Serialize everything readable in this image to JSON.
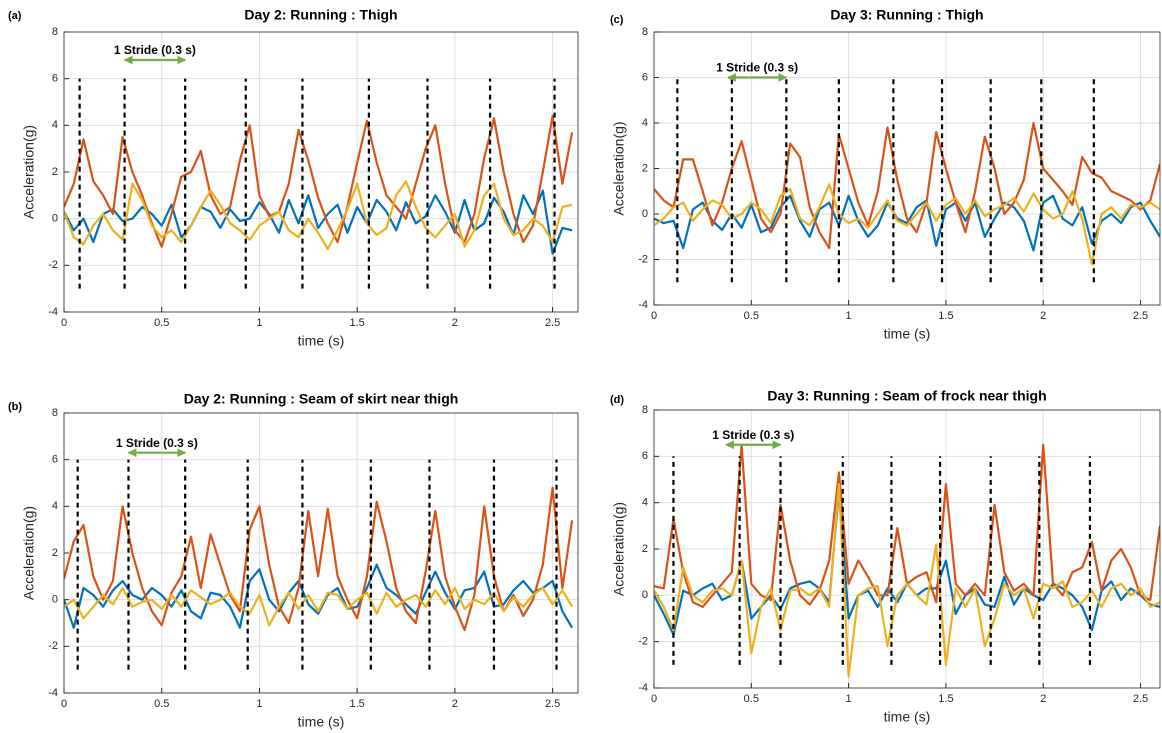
{
  "chart_data": [
    {
      "type": "line",
      "panel_label": "(a)",
      "title": "Day 2: Running : Thigh",
      "x_label": "time (s)",
      "y_label": "Acceleration(g)",
      "xlim": [
        0,
        2.63
      ],
      "ylim": [
        -4,
        8
      ],
      "xticks": [
        0,
        0.5,
        1,
        1.5,
        2,
        2.5
      ],
      "yticks": [
        -4,
        -2,
        0,
        2,
        4,
        6,
        8
      ],
      "grid": true,
      "x": [
        0,
        0.05,
        0.1,
        0.15,
        0.2,
        0.25,
        0.3,
        0.35,
        0.4,
        0.45,
        0.5,
        0.55,
        0.6,
        0.65,
        0.7,
        0.75,
        0.8,
        0.85,
        0.9,
        0.95,
        1,
        1.05,
        1.1,
        1.15,
        1.2,
        1.25,
        1.3,
        1.35,
        1.4,
        1.45,
        1.5,
        1.55,
        1.6,
        1.65,
        1.7,
        1.75,
        1.8,
        1.85,
        1.9,
        1.95,
        2,
        2.05,
        2.1,
        2.15,
        2.2,
        2.25,
        2.3,
        2.35,
        2.4,
        2.45,
        2.5,
        2.55,
        2.6
      ],
      "series": [
        {
          "color": "#0072bd",
          "values": [
            0.3,
            -0.5,
            0.0,
            -1.0,
            0.2,
            0.4,
            -0.1,
            0.0,
            0.5,
            0.2,
            -0.3,
            0.6,
            -0.8,
            -0.3,
            0.5,
            0.3,
            -0.4,
            0.4,
            -0.1,
            0.0,
            0.7,
            0.2,
            -0.6,
            0.8,
            -0.2,
            1.0,
            -0.4,
            0.2,
            0.6,
            -0.6,
            0.5,
            -0.2,
            0.8,
            0.3,
            -0.5,
            0.7,
            -0.2,
            0.1,
            1.0,
            0.3,
            -0.6,
            0.8,
            -0.5,
            -0.2,
            0.9,
            0.3,
            -0.7,
            1.0,
            0.2,
            1.2,
            -1.5,
            -0.4,
            -0.5
          ]
        },
        {
          "color": "#d95319",
          "values": [
            0.5,
            1.5,
            3.4,
            1.6,
            1.0,
            0.2,
            3.5,
            2.0,
            1.0,
            -0.2,
            -1.2,
            0.2,
            1.8,
            2.0,
            2.9,
            1.0,
            0.2,
            0.5,
            2.5,
            4.0,
            1.0,
            0.1,
            0.3,
            1.5,
            3.8,
            2.5,
            0.9,
            -0.2,
            -1.0,
            0.5,
            2.4,
            4.2,
            2.4,
            1.0,
            0.5,
            0.0,
            1.5,
            3.0,
            4.0,
            1.5,
            -0.5,
            -1.0,
            0.2,
            2.6,
            4.3,
            2.0,
            0.2,
            -1.0,
            -0.3,
            2.0,
            4.4,
            1.5,
            3.7
          ]
        },
        {
          "color": "#edb120",
          "values": [
            0.3,
            -0.8,
            -1.1,
            -0.3,
            0.2,
            -0.5,
            -0.9,
            1.5,
            0.8,
            -0.3,
            -0.8,
            -0.5,
            -1.0,
            -0.3,
            0.5,
            1.2,
            0.6,
            -0.2,
            -0.5,
            -0.9,
            -0.3,
            0.0,
            0.3,
            -0.5,
            -0.8,
            0.0,
            -0.6,
            -1.3,
            -0.5,
            0.4,
            1.5,
            -0.2,
            -0.7,
            -0.4,
            1.0,
            1.6,
            0.5,
            -0.4,
            -0.8,
            -0.3,
            0.2,
            -1.2,
            -0.5,
            1.0,
            1.5,
            0.0,
            -0.7,
            -0.5,
            0.0,
            -0.3,
            -1.0,
            0.5,
            0.6
          ]
        }
      ],
      "markers": [
        0.08,
        0.31,
        0.62,
        0.93,
        1.22,
        1.56,
        1.86,
        2.18,
        2.51
      ],
      "marker_range": [
        -3,
        6
      ],
      "annotation": {
        "text": "1 Stride (0.3 s)",
        "x_start": 0.31,
        "x_end": 0.62,
        "y": 6.8,
        "color": "#70ad47"
      }
    },
    {
      "type": "line",
      "panel_label": "(c)",
      "title": "Day 3: Running : Thigh",
      "x_label": "time (s)",
      "y_label": "Acceleration(g)",
      "xlim": [
        0,
        2.6
      ],
      "ylim": [
        -4,
        8
      ],
      "xticks": [
        0,
        0.5,
        1,
        1.5,
        2,
        2.5
      ],
      "yticks": [
        -4,
        -2,
        0,
        2,
        4,
        6,
        8
      ],
      "grid": true,
      "x": [
        0,
        0.05,
        0.1,
        0.15,
        0.2,
        0.25,
        0.3,
        0.35,
        0.4,
        0.45,
        0.5,
        0.55,
        0.6,
        0.65,
        0.7,
        0.75,
        0.8,
        0.85,
        0.9,
        0.95,
        1,
        1.05,
        1.1,
        1.15,
        1.2,
        1.25,
        1.3,
        1.35,
        1.4,
        1.45,
        1.5,
        1.55,
        1.6,
        1.65,
        1.7,
        1.75,
        1.8,
        1.85,
        1.9,
        1.95,
        2,
        2.05,
        2.1,
        2.15,
        2.2,
        2.25,
        2.3,
        2.35,
        2.4,
        2.45,
        2.5,
        2.55,
        2.6
      ],
      "series": [
        {
          "color": "#0072bd",
          "values": [
            -0.2,
            -0.4,
            -0.3,
            -1.5,
            0.2,
            0.5,
            -0.3,
            -0.7,
            0.0,
            -0.6,
            0.4,
            -0.8,
            -0.6,
            0.3,
            0.8,
            -0.3,
            -1.0,
            0.2,
            0.5,
            -0.5,
            0.8,
            -0.3,
            -1.0,
            -0.5,
            0.5,
            -0.2,
            -0.4,
            0.3,
            0.6,
            -1.4,
            0.2,
            0.5,
            -0.3,
            0.5,
            -1.0,
            -0.2,
            0.5,
            0.3,
            -0.3,
            -1.6,
            0.5,
            0.8,
            -0.2,
            -0.5,
            0.3,
            -1.3,
            -0.3,
            0.0,
            -0.4,
            0.3,
            0.5,
            -0.3,
            -1.0
          ]
        },
        {
          "color": "#d95319",
          "values": [
            1.1,
            0.6,
            0.3,
            2.4,
            2.4,
            1.0,
            -0.5,
            0.5,
            2.0,
            3.2,
            1.5,
            -0.2,
            -0.8,
            0.0,
            3.1,
            2.5,
            0.3,
            -0.8,
            -1.5,
            3.5,
            2.0,
            0.5,
            -0.5,
            1.0,
            3.8,
            1.5,
            -0.2,
            -0.8,
            0.5,
            3.6,
            2.0,
            0.5,
            -0.8,
            1.0,
            3.4,
            2.0,
            0.0,
            0.5,
            1.5,
            4.0,
            2.0,
            1.5,
            1.0,
            0.4,
            2.5,
            1.8,
            1.6,
            1.0,
            0.8,
            0.6,
            0.2,
            0.6,
            2.2
          ]
        },
        {
          "color": "#edb120",
          "values": [
            -0.5,
            -0.2,
            0.3,
            0.5,
            -0.3,
            0.2,
            0.6,
            0.4,
            -0.2,
            0.0,
            0.5,
            0.2,
            -0.4,
            0.8,
            1.1,
            -0.2,
            -0.5,
            0.3,
            1.3,
            0.0,
            -0.4,
            -0.2,
            -0.6,
            0.0,
            0.6,
            -0.3,
            -0.5,
            0.0,
            0.5,
            -0.3,
            0.4,
            0.7,
            0.0,
            0.6,
            -0.1,
            0.2,
            0.4,
            0.7,
            0.1,
            0.9,
            0.2,
            -0.2,
            0.0,
            1.0,
            -0.2,
            -2.2,
            0.0,
            0.3,
            -0.2,
            0.4,
            0.3,
            0.5,
            0.2
          ]
        }
      ],
      "markers": [
        0.12,
        0.4,
        0.68,
        0.95,
        1.23,
        1.48,
        1.73,
        1.99,
        2.26
      ],
      "marker_range": [
        -3,
        6
      ],
      "annotation": {
        "text": "1 Stride (0.3 s)",
        "x_start": 0.38,
        "x_end": 0.68,
        "y": 6.0,
        "color": "#70ad47"
      }
    },
    {
      "type": "line",
      "panel_label": "(b)",
      "title": "Day 2: Running : Seam of skirt near thigh",
      "x_label": "time (s)",
      "y_label": "Acceleration(g)",
      "xlim": [
        0,
        2.63
      ],
      "ylim": [
        -4,
        8
      ],
      "xticks": [
        0,
        0.5,
        1,
        1.5,
        2,
        2.5
      ],
      "yticks": [
        -4,
        -2,
        0,
        2,
        4,
        6,
        8
      ],
      "grid": true,
      "x": [
        0,
        0.05,
        0.1,
        0.15,
        0.2,
        0.25,
        0.3,
        0.35,
        0.4,
        0.45,
        0.5,
        0.55,
        0.6,
        0.65,
        0.7,
        0.75,
        0.8,
        0.85,
        0.9,
        0.95,
        1,
        1.05,
        1.1,
        1.15,
        1.2,
        1.25,
        1.3,
        1.35,
        1.4,
        1.45,
        1.5,
        1.55,
        1.6,
        1.65,
        1.7,
        1.75,
        1.8,
        1.85,
        1.9,
        1.95,
        2,
        2.05,
        2.1,
        2.15,
        2.2,
        2.25,
        2.3,
        2.35,
        2.4,
        2.45,
        2.5,
        2.55,
        2.6
      ],
      "series": [
        {
          "color": "#0072bd",
          "values": [
            0.0,
            -1.2,
            0.5,
            0.2,
            -0.3,
            0.4,
            0.8,
            0.2,
            0.0,
            0.5,
            0.2,
            -0.3,
            0.4,
            -0.5,
            -0.8,
            0.3,
            0.2,
            -0.3,
            -1.2,
            0.8,
            1.3,
            0.0,
            -0.5,
            0.3,
            0.8,
            -0.2,
            -0.6,
            0.2,
            0.5,
            -0.4,
            -0.3,
            0.5,
            1.5,
            0.5,
            0.2,
            -0.2,
            -0.6,
            0.3,
            1.2,
            0.3,
            -0.4,
            0.4,
            0.5,
            1.2,
            -0.3,
            -0.2,
            0.4,
            0.8,
            0.3,
            0.5,
            0.8,
            -0.5,
            -1.2
          ]
        },
        {
          "color": "#d95319",
          "values": [
            0.9,
            2.5,
            3.2,
            1.0,
            0.0,
            0.8,
            4.0,
            2.0,
            0.5,
            -0.5,
            -1.1,
            0.3,
            1.0,
            2.7,
            0.5,
            2.8,
            1.5,
            0.2,
            -0.5,
            3.0,
            4.0,
            1.5,
            -0.3,
            -1.0,
            0.5,
            3.8,
            1.0,
            3.9,
            1.0,
            0.0,
            -0.8,
            1.0,
            4.2,
            2.5,
            0.5,
            -0.5,
            -1.0,
            1.2,
            3.8,
            1.0,
            -0.3,
            -1.3,
            0.2,
            4.0,
            1.0,
            -0.5,
            0.2,
            -0.7,
            0.0,
            1.5,
            4.8,
            0.5,
            3.4
          ]
        },
        {
          "color": "#edb120",
          "values": [
            -0.3,
            0.0,
            -0.8,
            -0.3,
            0.2,
            -0.2,
            0.5,
            -0.3,
            -0.1,
            0.0,
            -0.4,
            0.2,
            -0.3,
            0.4,
            0.1,
            -0.2,
            0.0,
            0.3,
            -0.3,
            -0.6,
            0.2,
            -1.1,
            -0.3,
            0.3,
            -0.4,
            0.2,
            -0.5,
            0.3,
            0.2,
            -0.4,
            0.0,
            0.3,
            -0.6,
            0.3,
            -0.3,
            0.0,
            0.2,
            -0.3,
            0.4,
            -0.2,
            0.5,
            -0.4,
            0.0,
            -0.2,
            0.3,
            -0.5,
            0.1,
            -0.3,
            0.2,
            0.5,
            -0.2,
            0.4,
            -0.3
          ]
        }
      ],
      "markers": [
        0.07,
        0.33,
        0.62,
        0.94,
        1.22,
        1.57,
        1.87,
        2.2,
        2.52
      ],
      "marker_range": [
        -3,
        6
      ],
      "annotation": {
        "text": "1 Stride (0.3 s)",
        "x_start": 0.33,
        "x_end": 0.62,
        "y": 6.3,
        "color": "#70ad47"
      }
    },
    {
      "type": "line",
      "panel_label": "(d)",
      "title": "Day 3: Running : Seam of frock near thigh",
      "x_label": "time (s)",
      "y_label": "Acceleration(g)",
      "xlim": [
        0,
        2.6
      ],
      "ylim": [
        -4,
        8
      ],
      "xticks": [
        0,
        0.5,
        1,
        1.5,
        2,
        2.5
      ],
      "yticks": [
        -4,
        -2,
        0,
        2,
        4,
        6,
        8
      ],
      "grid": true,
      "x": [
        0,
        0.05,
        0.1,
        0.15,
        0.2,
        0.25,
        0.3,
        0.35,
        0.4,
        0.45,
        0.5,
        0.55,
        0.6,
        0.65,
        0.7,
        0.75,
        0.8,
        0.85,
        0.9,
        0.95,
        1,
        1.05,
        1.1,
        1.15,
        1.2,
        1.25,
        1.3,
        1.35,
        1.4,
        1.45,
        1.5,
        1.55,
        1.6,
        1.65,
        1.7,
        1.75,
        1.8,
        1.85,
        1.9,
        1.95,
        2,
        2.05,
        2.1,
        2.15,
        2.2,
        2.25,
        2.3,
        2.35,
        2.4,
        2.45,
        2.5,
        2.55,
        2.6
      ],
      "series": [
        {
          "color": "#0072bd",
          "values": [
            0.0,
            -0.8,
            -1.7,
            0.2,
            0.0,
            0.3,
            0.5,
            -0.2,
            0.0,
            1.5,
            -1.0,
            -0.5,
            0.0,
            -0.6,
            0.3,
            0.5,
            0.6,
            0.3,
            -0.3,
            4.5,
            -1.0,
            0.0,
            0.2,
            -0.5,
            0.3,
            -0.3,
            0.5,
            0.0,
            0.3,
            0.3,
            1.5,
            -0.8,
            0.0,
            0.3,
            -0.4,
            -0.5,
            0.8,
            -0.4,
            0.3,
            0.0,
            -0.2,
            0.5,
            0.3,
            0.0,
            -0.5,
            -1.5,
            0.2,
            0.6,
            -0.2,
            0.3,
            0.0,
            -0.4,
            -0.5
          ]
        },
        {
          "color": "#d95319",
          "values": [
            0.4,
            0.3,
            3.3,
            1.0,
            -0.3,
            -0.5,
            0.0,
            0.5,
            1.0,
            6.5,
            0.5,
            0.0,
            -0.2,
            3.9,
            1.5,
            0.0,
            -0.4,
            0.2,
            1.5,
            5.3,
            0.5,
            1.5,
            0.8,
            0.0,
            0.0,
            2.9,
            0.5,
            0.8,
            1.0,
            -0.3,
            4.8,
            0.5,
            0.0,
            0.5,
            0.0,
            3.9,
            1.0,
            0.2,
            0.5,
            0.0,
            6.5,
            0.5,
            0.0,
            1.0,
            1.2,
            2.3,
            0.2,
            1.5,
            2.0,
            1.2,
            0.0,
            -0.2,
            3.0
          ]
        },
        {
          "color": "#edb120",
          "values": [
            0.2,
            -0.5,
            -1.5,
            1.2,
            0.0,
            -0.3,
            0.2,
            0.3,
            0.0,
            1.5,
            -2.5,
            -0.5,
            0.3,
            -1.5,
            0.2,
            0.3,
            0.0,
            0.3,
            -0.5,
            4.8,
            -3.5,
            0.0,
            0.3,
            0.4,
            -2.2,
            0.0,
            0.5,
            0.0,
            -0.4,
            2.2,
            -3.0,
            0.3,
            -0.5,
            0.3,
            -2.2,
            -1.0,
            0.5,
            0.0,
            0.3,
            -1.0,
            0.5,
            0.3,
            0.6,
            -0.5,
            -0.3,
            0.2,
            -0.5,
            0.3,
            0.5,
            0.0,
            0.3,
            -0.5,
            -0.3
          ]
        }
      ],
      "markers": [
        0.1,
        0.44,
        0.65,
        0.97,
        1.22,
        1.47,
        1.73,
        1.98,
        2.24
      ],
      "marker_range": [
        -3,
        6
      ],
      "annotation": {
        "text": "1 Stride (0.3 s)",
        "x_start": 0.37,
        "x_end": 0.65,
        "y": 6.5,
        "color": "#70ad47"
      }
    }
  ]
}
